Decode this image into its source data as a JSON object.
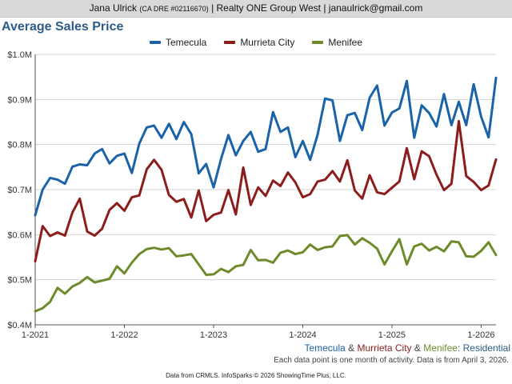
{
  "header": {
    "agent_name": "Jana Ulrick",
    "license": "(CA DRE #02116670)",
    "brokerage": "| Realty ONE Group West |",
    "email": "janaulrick@gmail.com"
  },
  "chart_data": {
    "type": "line",
    "title": "Average Sales Price",
    "ylim": [
      400000,
      1000000
    ],
    "yticks": [
      400000,
      500000,
      600000,
      700000,
      800000,
      900000,
      1000000
    ],
    "ytick_labels": [
      "$0.4M",
      "$0.5M",
      "$0.6M",
      "$0.7M",
      "$0.8M",
      "$0.9M",
      "$1.0M"
    ],
    "x_start": "2021-01",
    "xlim_months": [
      0,
      62
    ],
    "xticks": [
      0,
      12,
      24,
      36,
      48,
      60
    ],
    "xtick_labels": [
      "1-2021",
      "1-2022",
      "1-2023",
      "1-2024",
      "1-2025",
      "1-2026"
    ],
    "grid": true,
    "legend_position": "top-center",
    "series": [
      {
        "name": "Temecula",
        "color": "#1b63a9",
        "values": [
          643000,
          700000,
          726000,
          722000,
          713000,
          751000,
          756000,
          754000,
          780000,
          790000,
          758000,
          775000,
          780000,
          737000,
          802000,
          838000,
          842000,
          815000,
          846000,
          812000,
          850000,
          823000,
          736000,
          757000,
          705000,
          768000,
          821000,
          776000,
          808000,
          828000,
          784000,
          790000,
          872000,
          828000,
          838000,
          772000,
          808000,
          766000,
          822000,
          902000,
          898000,
          808000,
          865000,
          870000,
          832000,
          904000,
          931000,
          842000,
          871000,
          880000,
          941000,
          815000,
          887000,
          870000,
          840000,
          912000,
          843000,
          895000,
          843000,
          934000,
          862000,
          816000,
          948000
        ]
      },
      {
        "name": "Murrieta City",
        "color": "#8c1d1d",
        "values": [
          541000,
          619000,
          597000,
          605000,
          598000,
          649000,
          680000,
          607000,
          598000,
          613000,
          655000,
          670000,
          653000,
          683000,
          687000,
          745000,
          766000,
          744000,
          688000,
          673000,
          679000,
          638000,
          698000,
          630000,
          644000,
          649000,
          699000,
          645000,
          749000,
          666000,
          705000,
          686000,
          720000,
          708000,
          738000,
          716000,
          683000,
          690000,
          718000,
          722000,
          741000,
          718000,
          765000,
          698000,
          680000,
          732000,
          694000,
          690000,
          704000,
          718000,
          792000,
          723000,
          785000,
          774000,
          733000,
          699000,
          713000,
          852000,
          730000,
          717000,
          699000,
          709000,
          767000
        ]
      },
      {
        "name": "Menifee",
        "color": "#6e8b2c",
        "values": [
          430000,
          437000,
          451000,
          482000,
          469000,
          485000,
          493000,
          506000,
          494000,
          498000,
          502000,
          530000,
          514000,
          538000,
          557000,
          568000,
          571000,
          567000,
          570000,
          552000,
          554000,
          557000,
          534000,
          511000,
          512000,
          524000,
          517000,
          530000,
          533000,
          566000,
          543000,
          544000,
          538000,
          560000,
          565000,
          557000,
          561000,
          578000,
          566000,
          572000,
          574000,
          597000,
          599000,
          578000,
          592000,
          582000,
          569000,
          534000,
          563000,
          590000,
          534000,
          574000,
          580000,
          565000,
          573000,
          563000,
          585000,
          583000,
          552000,
          551000,
          564000,
          583000,
          555000
        ]
      }
    ],
    "subtitle": {
      "temecula": "Temecula",
      "amp1": "&",
      "murrieta": "Murrieta City",
      "amp2": "&",
      "menifee": "Menifee",
      "colon": ":",
      "residential": "Residential"
    },
    "note": "Each data point is one month of activity. Data is from April 3, 2026."
  },
  "footer": "Data from CRMLS. InfoSparks © 2026 ShowingTime Plus, LLC.",
  "colors": {
    "title": "#2e5b87",
    "temecula": "#1b63a9",
    "murrieta": "#8c1d1d",
    "menifee": "#6e8b2c",
    "grid": "#d4d4d4",
    "header_bg": "#d9d9d9"
  }
}
